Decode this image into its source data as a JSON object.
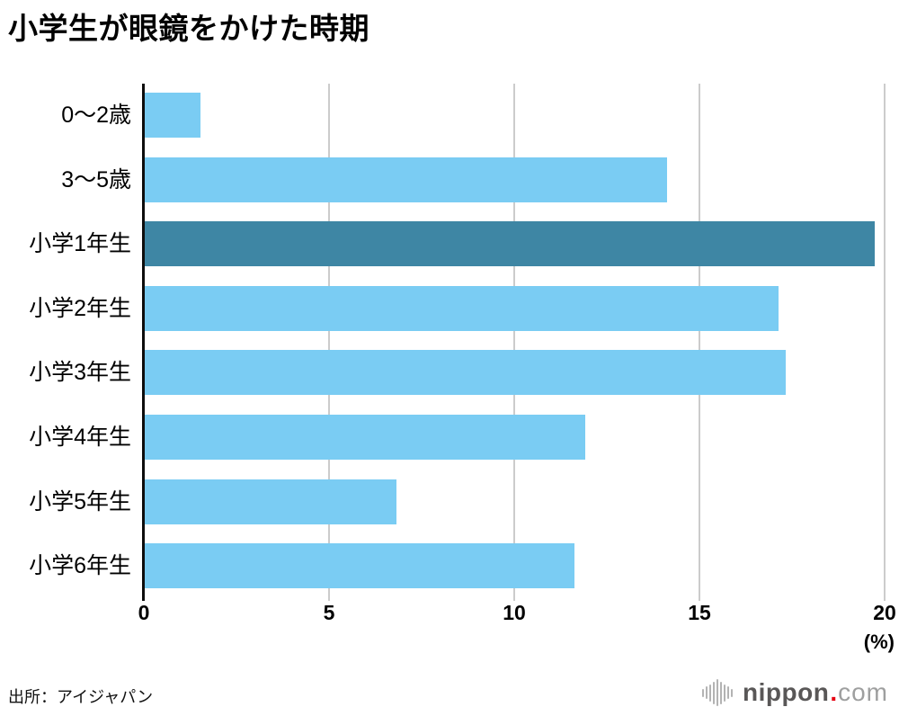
{
  "header": {
    "title": "小学生が眼鏡をかけた時期"
  },
  "chart_data": {
    "type": "bar",
    "orientation": "horizontal",
    "title": "小学生が眼鏡をかけた時期",
    "categories": [
      "0〜2歳",
      "3〜5歳",
      "小学1年生",
      "小学2年生",
      "小学3年生",
      "小学4年生",
      "小学5年生",
      "小学6年生"
    ],
    "values": [
      1.5,
      14.1,
      19.7,
      17.1,
      17.3,
      11.9,
      6.8,
      11.6
    ],
    "highlight_index": 2,
    "highlight_category": "小学1年生",
    "xlim": [
      0,
      20
    ],
    "xticks": [
      0,
      5,
      10,
      15,
      20
    ],
    "xlabel": "(%)",
    "ylabel": "",
    "grid": "vertical gridlines at ticks, on",
    "legend": "none"
  },
  "axis": {
    "unit_label": "(%)"
  },
  "footer": {
    "source": "出所：アイジャパン",
    "logo": {
      "brand": "nippon",
      "dot": ".",
      "suffix": "com",
      "icon": "waveform-icon",
      "icon_bars": [
        9,
        14,
        19,
        25,
        30,
        25,
        19,
        14,
        9
      ]
    }
  },
  "colors": {
    "bar": "#7ACCF3",
    "bar_highlight": "#3E86A4",
    "gridline": "#CCCCCC",
    "axis_line": "#0D0D0D",
    "title_text": "#000000",
    "logo_brand_gray": "#595757",
    "logo_suffix_gray": "#9E9F9F",
    "logo_red": "#E60012",
    "logo_icon_gray": "#B3B3B3"
  }
}
